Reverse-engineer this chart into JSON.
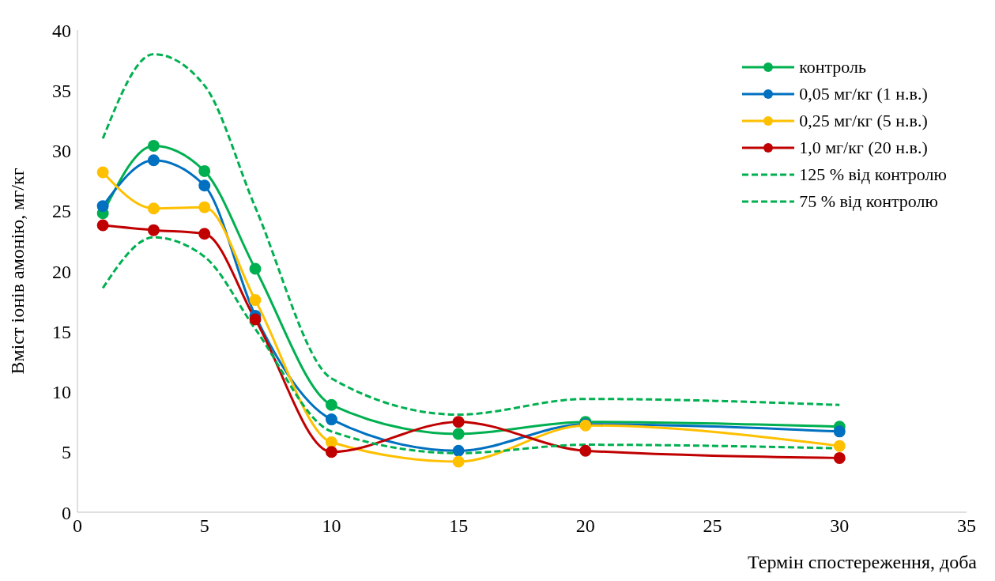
{
  "chart_data": {
    "type": "line",
    "xlabel": "Термін спостереження, доба",
    "ylabel": "Вміст іонів амонію, мг/кг",
    "x": [
      1,
      3,
      5,
      7,
      10,
      15,
      20,
      30
    ],
    "series": [
      {
        "name": "контроль",
        "color": "#00b050",
        "values": [
          24.8,
          30.4,
          28.3,
          20.2,
          8.9,
          6.5,
          7.5,
          7.1
        ],
        "marker": "circle",
        "line_style": "solid"
      },
      {
        "name": "0,05 мг/кг (1 н.в.)",
        "color": "#0070c0",
        "values": [
          25.4,
          29.2,
          27.1,
          16.3,
          7.7,
          5.1,
          7.3,
          6.7
        ],
        "marker": "circle",
        "line_style": "solid"
      },
      {
        "name": "0,25 мг/кг (5 н.в.)",
        "color": "#ffc000",
        "values": [
          28.2,
          25.2,
          25.3,
          17.6,
          5.8,
          4.2,
          7.2,
          5.5
        ],
        "marker": "circle",
        "line_style": "solid"
      },
      {
        "name": "1,0 мг/кг (20 н.в.)",
        "color": "#c00000",
        "values": [
          23.8,
          23.4,
          23.1,
          16.0,
          5.0,
          7.5,
          5.1,
          4.5
        ],
        "marker": "circle",
        "line_style": "solid"
      },
      {
        "name": "125 % від контролю",
        "color": "#00b050",
        "values": [
          31.0,
          38.0,
          35.4,
          25.3,
          11.1,
          8.1,
          9.4,
          8.9
        ],
        "marker": "none",
        "line_style": "dashed"
      },
      {
        "name": "75 % від контролю",
        "color": "#00b050",
        "values": [
          18.6,
          22.8,
          21.2,
          15.2,
          6.7,
          4.9,
          5.6,
          5.3
        ],
        "marker": "none",
        "line_style": "dashed"
      }
    ],
    "xlim": [
      0,
      35
    ],
    "xticks": [
      0,
      5,
      10,
      15,
      20,
      25,
      30,
      35
    ],
    "ylim": [
      0,
      40
    ],
    "yticks": [
      0,
      5,
      10,
      15,
      20,
      25,
      30,
      35,
      40
    ],
    "grid": false,
    "legend": "top right"
  }
}
